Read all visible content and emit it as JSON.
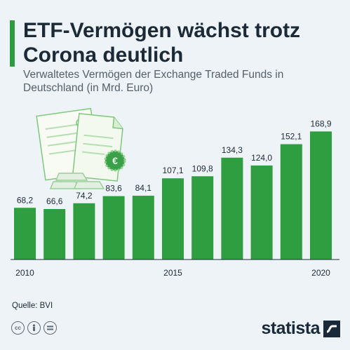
{
  "title": "ETF-Vermögen wächst trotz Corona deutlich",
  "subtitle": "Verwaltetes Vermögen der Exchange Traded Funds in Deutschland (in Mrd. Euro)",
  "source": "Quelle: BVI",
  "brand": "statista",
  "colors": {
    "bar": "#2e9e40",
    "accent": "#2d9b3f",
    "text": "#1c2a38",
    "background": "#edf3f6"
  },
  "license_icons": [
    "creative-commons-icon",
    "attribution-icon",
    "no-derivatives-icon"
  ],
  "chart_data": {
    "type": "bar",
    "categories": [
      "2010",
      "2011",
      "2012",
      "2013",
      "2014",
      "2015",
      "2016",
      "2017",
      "2018",
      "2019",
      "2020"
    ],
    "values": [
      68.2,
      66.6,
      74.2,
      83.6,
      84.1,
      107.1,
      109.8,
      134.3,
      124.0,
      152.1,
      168.9
    ],
    "value_labels": [
      "68,2",
      "66,6",
      "74,2",
      "83,6",
      "84,1",
      "107,1",
      "109,8",
      "134,3",
      "124,0",
      "152,1",
      "168,9"
    ],
    "x_tick_labels": {
      "2010": "2010",
      "2015": "2015",
      "2020": "2020"
    },
    "ylim": [
      0,
      185
    ],
    "grid": false,
    "legend": "none"
  }
}
